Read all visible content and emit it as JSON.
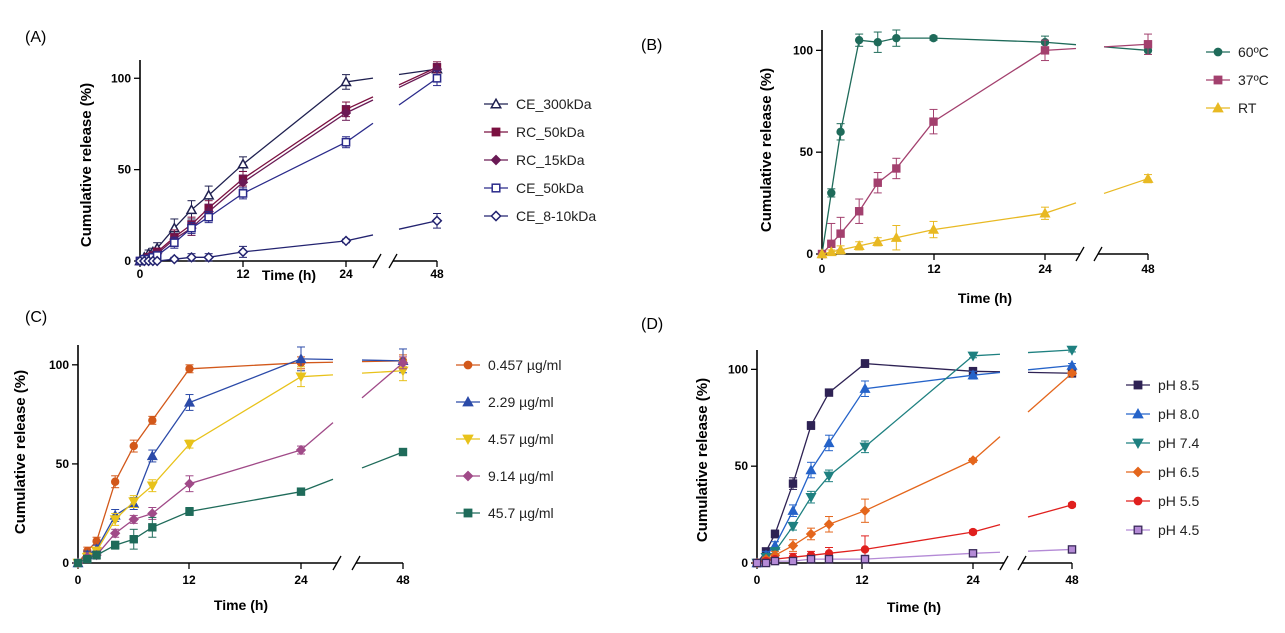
{
  "chart_data": [
    {
      "panel": "(A)",
      "type": "line",
      "xlabel": "Time (h)",
      "ylabel": "Cumulative release (%)",
      "xticks": [
        "0",
        "12",
        "24",
        "48"
      ],
      "yticks": [
        "0",
        "50",
        "100"
      ],
      "ylim": [
        0,
        110
      ],
      "legend": "right",
      "series": [
        {
          "name": "CE_300kDa",
          "color": "#1f2050",
          "marker": "triangle-open",
          "x": [
            0,
            0.5,
            1,
            1.5,
            2,
            4,
            6,
            8,
            12,
            24,
            48
          ],
          "y": [
            0,
            2,
            4,
            5,
            7,
            18,
            28,
            36,
            53,
            98,
            105
          ],
          "err": [
            0,
            1,
            2,
            2,
            3,
            5,
            5,
            5,
            4,
            4,
            3
          ]
        },
        {
          "name": "RC_50kDa",
          "color": "#7b1040",
          "marker": "square",
          "x": [
            0,
            0.5,
            1,
            1.5,
            2,
            4,
            6,
            8,
            12,
            24,
            48
          ],
          "y": [
            0,
            1,
            2,
            3,
            5,
            13,
            20,
            29,
            45,
            83,
            106
          ],
          "err": [
            0,
            1,
            1,
            2,
            2,
            4,
            4,
            4,
            4,
            4,
            3
          ]
        },
        {
          "name": "RC_15kDa",
          "color": "#6a1a55",
          "marker": "diamond",
          "x": [
            0,
            0.5,
            1,
            1.5,
            2,
            4,
            6,
            8,
            12,
            24,
            48
          ],
          "y": [
            0,
            1,
            2,
            3,
            4,
            12,
            18,
            27,
            43,
            81,
            105
          ],
          "err": [
            0,
            1,
            1,
            2,
            2,
            3,
            4,
            4,
            4,
            4,
            3
          ]
        },
        {
          "name": "CE_50kDa",
          "color": "#2a2a8a",
          "marker": "square-open",
          "x": [
            0,
            0.5,
            1,
            1.5,
            2,
            4,
            6,
            8,
            12,
            24,
            48
          ],
          "y": [
            0,
            1,
            1,
            2,
            3,
            10,
            18,
            24,
            37,
            65,
            100
          ],
          "err": [
            0,
            1,
            1,
            1,
            2,
            3,
            3,
            3,
            3,
            3,
            4
          ]
        },
        {
          "name": "CE_8-10kDa",
          "color": "#232370",
          "marker": "diamond-open",
          "x": [
            0,
            0.5,
            1,
            1.5,
            2,
            4,
            6,
            8,
            12,
            24,
            48
          ],
          "y": [
            0,
            0,
            0,
            0,
            0,
            1,
            2,
            2,
            5,
            11,
            22
          ],
          "err": [
            0,
            0,
            0,
            0,
            0,
            1,
            2,
            2,
            3,
            1,
            4
          ]
        }
      ]
    },
    {
      "panel": "(B)",
      "type": "line",
      "xlabel": "Time (h)",
      "ylabel": "Cumulative release (%)",
      "xticks": [
        "0",
        "12",
        "24",
        "48"
      ],
      "yticks": [
        "0",
        "50",
        "100"
      ],
      "ylim": [
        0,
        110
      ],
      "legend": "right",
      "series": [
        {
          "name": "60ºC",
          "color": "#1f6b5a",
          "marker": "circle",
          "x": [
            0,
            1,
            2,
            4,
            6,
            8,
            12,
            24,
            48
          ],
          "y": [
            0,
            30,
            60,
            105,
            104,
            106,
            106,
            104,
            100
          ],
          "err": [
            0,
            2,
            4,
            3,
            5,
            4,
            1,
            3,
            2
          ]
        },
        {
          "name": "37ºC",
          "color": "#a3406e",
          "marker": "square",
          "x": [
            0,
            1,
            2,
            4,
            6,
            8,
            12,
            24,
            48
          ],
          "y": [
            0,
            5,
            10,
            21,
            35,
            42,
            65,
            100,
            103
          ],
          "err": [
            0,
            10,
            8,
            6,
            5,
            5,
            6,
            5,
            5
          ]
        },
        {
          "name": "RT",
          "color": "#e8b923",
          "marker": "triangle",
          "x": [
            0,
            1,
            2,
            4,
            6,
            8,
            12,
            24,
            48
          ],
          "y": [
            0,
            1,
            2,
            4,
            6,
            8,
            12,
            20,
            37
          ],
          "err": [
            0,
            1,
            2,
            2,
            2,
            6,
            4,
            3,
            2
          ]
        }
      ]
    },
    {
      "panel": "(C)",
      "type": "line",
      "xlabel": "Time (h)",
      "ylabel": "Cumulative release (%)",
      "xticks": [
        "0",
        "12",
        "24",
        "48"
      ],
      "yticks": [
        "0",
        "50",
        "100"
      ],
      "ylim": [
        0,
        110
      ],
      "legend": "right",
      "series": [
        {
          "name": "0.457 µg/ml",
          "color": "#d2581a",
          "marker": "circle",
          "x": [
            0,
            1,
            2,
            4,
            6,
            8,
            12,
            24,
            48
          ],
          "y": [
            0,
            6,
            11,
            41,
            59,
            72,
            98,
            101,
            102
          ],
          "err": [
            0,
            2,
            2,
            3,
            3,
            2,
            2,
            3,
            3
          ]
        },
        {
          "name": "2.29 µg/ml",
          "color": "#2b4aa8",
          "marker": "triangle",
          "x": [
            0,
            1,
            2,
            4,
            6,
            8,
            12,
            24,
            48
          ],
          "y": [
            0,
            4,
            7,
            24,
            30,
            54,
            81,
            103,
            102
          ],
          "err": [
            0,
            2,
            2,
            3,
            3,
            3,
            4,
            6,
            6
          ]
        },
        {
          "name": "4.57 µg/ml",
          "color": "#e8c21a",
          "marker": "triangle-down",
          "x": [
            0,
            1,
            2,
            4,
            6,
            8,
            12,
            24,
            48
          ],
          "y": [
            0,
            3,
            6,
            22,
            31,
            39,
            60,
            94,
            97
          ],
          "err": [
            0,
            2,
            2,
            3,
            3,
            3,
            2,
            5,
            5
          ]
        },
        {
          "name": "9.14 µg/ml",
          "color": "#a04a88",
          "marker": "diamond",
          "x": [
            0,
            1,
            2,
            4,
            6,
            8,
            12,
            24,
            48
          ],
          "y": [
            0,
            3,
            4,
            15,
            22,
            25,
            40,
            57,
            101
          ],
          "err": [
            0,
            1,
            2,
            2,
            2,
            3,
            4,
            2,
            3
          ]
        },
        {
          "name": "45.7 µg/ml",
          "color": "#1f6b5a",
          "marker": "square",
          "x": [
            0,
            1,
            2,
            4,
            6,
            8,
            12,
            24,
            48
          ],
          "y": [
            0,
            2,
            4,
            9,
            12,
            18,
            26,
            36,
            56
          ],
          "err": [
            0,
            1,
            2,
            2,
            5,
            5,
            2,
            1,
            1
          ]
        }
      ]
    },
    {
      "panel": "(D)",
      "type": "line",
      "xlabel": "Time (h)",
      "ylabel": "Cumulative release (%)",
      "xticks": [
        "0",
        "12",
        "24",
        "48"
      ],
      "yticks": [
        "0",
        "50",
        "100"
      ],
      "ylim": [
        0,
        110
      ],
      "legend": "right",
      "series": [
        {
          "name": "pH 8.5",
          "color": "#2e2254",
          "marker": "square",
          "x": [
            0,
            1,
            2,
            4,
            6,
            8,
            12,
            24,
            48
          ],
          "y": [
            0,
            6,
            15,
            41,
            71,
            88,
            103,
            99,
            98
          ],
          "err": [
            0,
            1,
            2,
            3,
            2,
            1,
            2,
            2,
            2
          ]
        },
        {
          "name": "pH 8.0",
          "color": "#2563c9",
          "marker": "triangle",
          "x": [
            0,
            1,
            2,
            4,
            6,
            8,
            12,
            24,
            48
          ],
          "y": [
            0,
            4,
            9,
            27,
            48,
            62,
            90,
            97,
            102
          ],
          "err": [
            0,
            2,
            2,
            3,
            4,
            4,
            4,
            2,
            1
          ]
        },
        {
          "name": "pH 7.4",
          "color": "#1e8080",
          "marker": "triangle-down",
          "x": [
            0,
            1,
            2,
            4,
            6,
            8,
            12,
            24,
            48
          ],
          "y": [
            0,
            3,
            6,
            19,
            34,
            45,
            60,
            107,
            110
          ],
          "err": [
            0,
            2,
            2,
            2,
            3,
            3,
            3,
            1,
            1
          ]
        },
        {
          "name": "pH 6.5",
          "color": "#e4661c",
          "marker": "diamond",
          "x": [
            0,
            1,
            2,
            4,
            6,
            8,
            12,
            24,
            48
          ],
          "y": [
            0,
            2,
            4,
            9,
            15,
            20,
            27,
            53,
            98
          ],
          "err": [
            0,
            1,
            2,
            3,
            3,
            4,
            6,
            1,
            1
          ]
        },
        {
          "name": "pH 5.5",
          "color": "#e0201e",
          "marker": "circle",
          "x": [
            0,
            1,
            2,
            4,
            6,
            8,
            12,
            24,
            48
          ],
          "y": [
            0,
            1,
            2,
            3,
            4,
            5,
            7,
            16,
            30
          ],
          "err": [
            0,
            1,
            1,
            2,
            2,
            3,
            7,
            1,
            1
          ]
        },
        {
          "name": "pH 4.5",
          "color": "#b48ad6",
          "marker": "square-open-fill",
          "x": [
            0,
            1,
            2,
            4,
            6,
            8,
            12,
            24,
            48
          ],
          "y": [
            0,
            0,
            1,
            1,
            2,
            2,
            2,
            5,
            7
          ],
          "err": [
            0,
            0,
            1,
            1,
            1,
            1,
            2,
            1,
            1
          ]
        }
      ]
    }
  ]
}
